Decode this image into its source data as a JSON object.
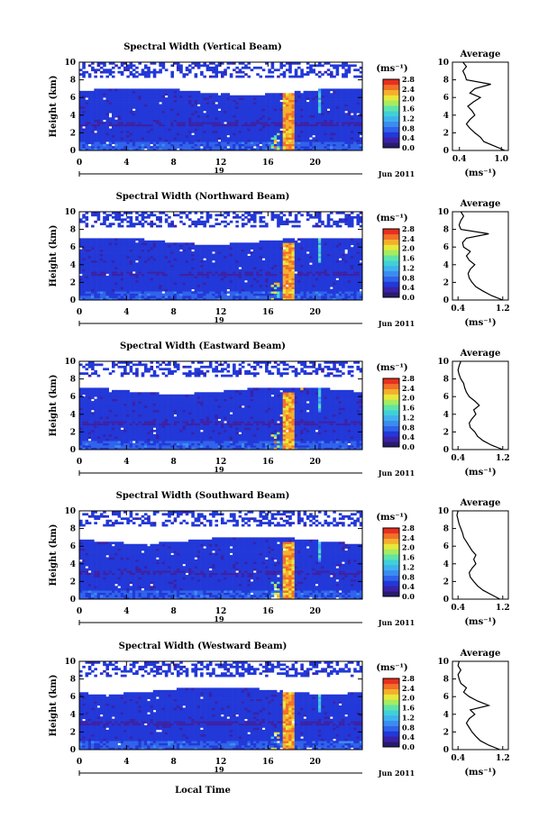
{
  "figure": {
    "xlabel": "Local Time",
    "date_label": "Jun 2011",
    "date_marker": "19",
    "colorbar_unit": "(ms⁻¹)",
    "avg_title": "Average",
    "avg_xlabel": "(ms⁻¹)"
  },
  "colorbar": {
    "ticks": [
      "0.0",
      "0.4",
      "0.8",
      "1.2",
      "1.6",
      "2.0",
      "2.4",
      "2.8"
    ],
    "colors": [
      "#2a1b6e",
      "#3a22a8",
      "#2238d8",
      "#2f63ea",
      "#3b8cf0",
      "#3fb2ee",
      "#40d0d8",
      "#5fe4a8",
      "#a6ec60",
      "#e8e83a",
      "#f4b02c",
      "#f2702a",
      "#e8301e"
    ]
  },
  "chart_data": [
    {
      "type": "heatmap",
      "title": "Spectral Width (Vertical Beam)",
      "ylabel": "Height (km)",
      "xlim": [
        0,
        24
      ],
      "ylim": [
        0,
        10
      ],
      "xticks": [
        0,
        4,
        8,
        12,
        16,
        20
      ],
      "yticks": [
        0,
        2,
        4,
        6,
        8,
        10
      ],
      "colorbar_range": [
        0.0,
        2.8
      ],
      "average": {
        "title": "Average",
        "xticks": [
          "0.4",
          "1.0"
        ],
        "xlim": [
          0.3,
          1.1
        ],
        "height": [
          0,
          0.5,
          1,
          1.5,
          2,
          2.5,
          3,
          3.5,
          4,
          4.5,
          5,
          5.5,
          6,
          6.5,
          7,
          7.5,
          8,
          8.5,
          9,
          9.5,
          10
        ],
        "value": [
          1.05,
          0.9,
          0.75,
          0.7,
          0.62,
          0.55,
          0.5,
          0.55,
          0.62,
          0.58,
          0.52,
          0.6,
          0.7,
          0.55,
          0.62,
          0.85,
          0.5,
          0.48,
          0.45,
          0.5,
          0.45
        ]
      }
    },
    {
      "type": "heatmap",
      "title": "Spectral Width (Northward Beam)",
      "ylabel": "Height (km)",
      "xlim": [
        0,
        24
      ],
      "ylim": [
        0,
        10
      ],
      "xticks": [
        0,
        4,
        8,
        12,
        16,
        20
      ],
      "yticks": [
        0,
        2,
        4,
        6,
        8,
        10
      ],
      "colorbar_range": [
        0.0,
        2.8
      ],
      "average": {
        "title": "Average",
        "xticks": [
          "0.4",
          "1.2"
        ],
        "xlim": [
          0.3,
          1.3
        ],
        "height": [
          0,
          0.5,
          1,
          1.5,
          2,
          2.5,
          3,
          3.5,
          4,
          4.5,
          5,
          5.5,
          6,
          6.5,
          7,
          7.5,
          8,
          8.5,
          9,
          9.5,
          10
        ],
        "value": [
          1.2,
          1.0,
          0.85,
          0.72,
          0.65,
          0.6,
          0.58,
          0.62,
          0.7,
          0.6,
          0.55,
          0.62,
          0.5,
          0.48,
          0.55,
          0.95,
          0.45,
          0.42,
          0.45,
          0.5,
          0.45
        ]
      }
    },
    {
      "type": "heatmap",
      "title": "Spectral Width (Eastward Beam)",
      "ylabel": "Height (km)",
      "xlim": [
        0,
        24
      ],
      "ylim": [
        0,
        10
      ],
      "xticks": [
        0,
        4,
        8,
        12,
        16,
        20
      ],
      "yticks": [
        0,
        2,
        4,
        6,
        8,
        10
      ],
      "colorbar_range": [
        0.0,
        2.8
      ],
      "average": {
        "title": "Average",
        "xticks": [
          "0.4",
          "1.2"
        ],
        "xlim": [
          0.3,
          1.3
        ],
        "height": [
          0,
          0.5,
          1,
          1.5,
          2,
          2.5,
          3,
          3.5,
          4,
          4.5,
          5,
          5.5,
          6,
          6.5,
          7,
          7.5,
          8,
          8.5,
          9,
          9.5,
          10
        ],
        "value": [
          1.2,
          1.0,
          0.85,
          0.75,
          0.7,
          0.62,
          0.6,
          0.65,
          0.72,
          0.68,
          0.78,
          0.7,
          0.6,
          0.55,
          0.52,
          0.5,
          0.45,
          0.42,
          0.4,
          0.42,
          0.45
        ]
      }
    },
    {
      "type": "heatmap",
      "title": "Spectral Width (Southward Beam)",
      "ylabel": "Height (km)",
      "xlim": [
        0,
        24
      ],
      "ylim": [
        0,
        10
      ],
      "xticks": [
        0,
        4,
        8,
        12,
        16,
        20
      ],
      "yticks": [
        0,
        2,
        4,
        6,
        8,
        10
      ],
      "colorbar_range": [
        0.0,
        2.8
      ],
      "average": {
        "title": "Average",
        "xticks": [
          "0.4",
          "1.2"
        ],
        "xlim": [
          0.3,
          1.3
        ],
        "height": [
          0,
          0.5,
          1,
          1.5,
          2,
          2.5,
          3,
          3.5,
          4,
          4.5,
          5,
          5.5,
          6,
          6.5,
          7,
          7.5,
          8,
          8.5,
          9,
          9.5,
          10
        ],
        "value": [
          1.15,
          1.0,
          0.85,
          0.75,
          0.68,
          0.62,
          0.6,
          0.65,
          0.72,
          0.68,
          0.72,
          0.65,
          0.6,
          0.55,
          0.5,
          0.48,
          0.45,
          0.42,
          0.4,
          0.38,
          0.4
        ]
      }
    },
    {
      "type": "heatmap",
      "title": "Spectral Width (Westward Beam)",
      "ylabel": "Height (km)",
      "xlim": [
        0,
        24
      ],
      "ylim": [
        0,
        10
      ],
      "xticks": [
        0,
        4,
        8,
        12,
        16,
        20
      ],
      "yticks": [
        0,
        2,
        4,
        6,
        8,
        10
      ],
      "colorbar_range": [
        0.0,
        2.8
      ],
      "average": {
        "title": "Average",
        "xticks": [
          "0.4",
          "1.2"
        ],
        "xlim": [
          0.3,
          1.3
        ],
        "height": [
          0,
          0.5,
          1,
          1.5,
          2,
          2.5,
          3,
          3.5,
          4,
          4.5,
          5,
          5.5,
          6,
          6.5,
          7,
          7.5,
          8,
          8.5,
          9,
          9.5,
          10
        ],
        "value": [
          1.15,
          0.95,
          0.8,
          0.72,
          0.65,
          0.6,
          0.55,
          0.6,
          0.7,
          0.62,
          0.95,
          0.75,
          0.6,
          0.5,
          0.55,
          0.45,
          0.42,
          0.4,
          0.45,
          0.4,
          0.42
        ]
      }
    }
  ]
}
